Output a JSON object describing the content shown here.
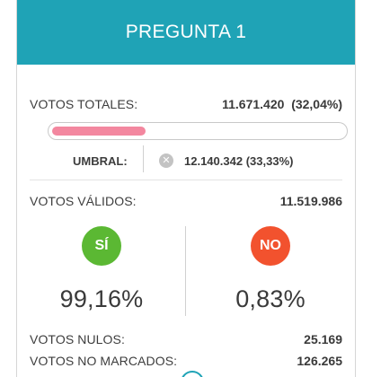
{
  "header": {
    "title": "PREGUNTA 1"
  },
  "totals": {
    "label": "VOTOS TOTALES:",
    "value": "11.671.420",
    "pct": "(32,04%)",
    "progress_fraction": 0.3204,
    "progress_color": "#f3879f"
  },
  "umbral": {
    "label": "UMBRAL:",
    "icon": "x-circle-icon",
    "value": "12.140.342",
    "pct": "(33,33%)"
  },
  "validos": {
    "label": "VOTOS VÁLIDOS:",
    "value": "11.519.986"
  },
  "si": {
    "badge": "SÍ",
    "pct": "99,16%",
    "color": "#5bb833"
  },
  "no": {
    "badge": "NO",
    "pct": "0,83%",
    "color": "#f2522e"
  },
  "nulos": {
    "label": "VOTOS NULOS:",
    "value": "25.169"
  },
  "no_marcados": {
    "label": "VOTOS NO MARCADOS:",
    "value": "126.265"
  },
  "colors": {
    "header": "#1fa3b6"
  }
}
